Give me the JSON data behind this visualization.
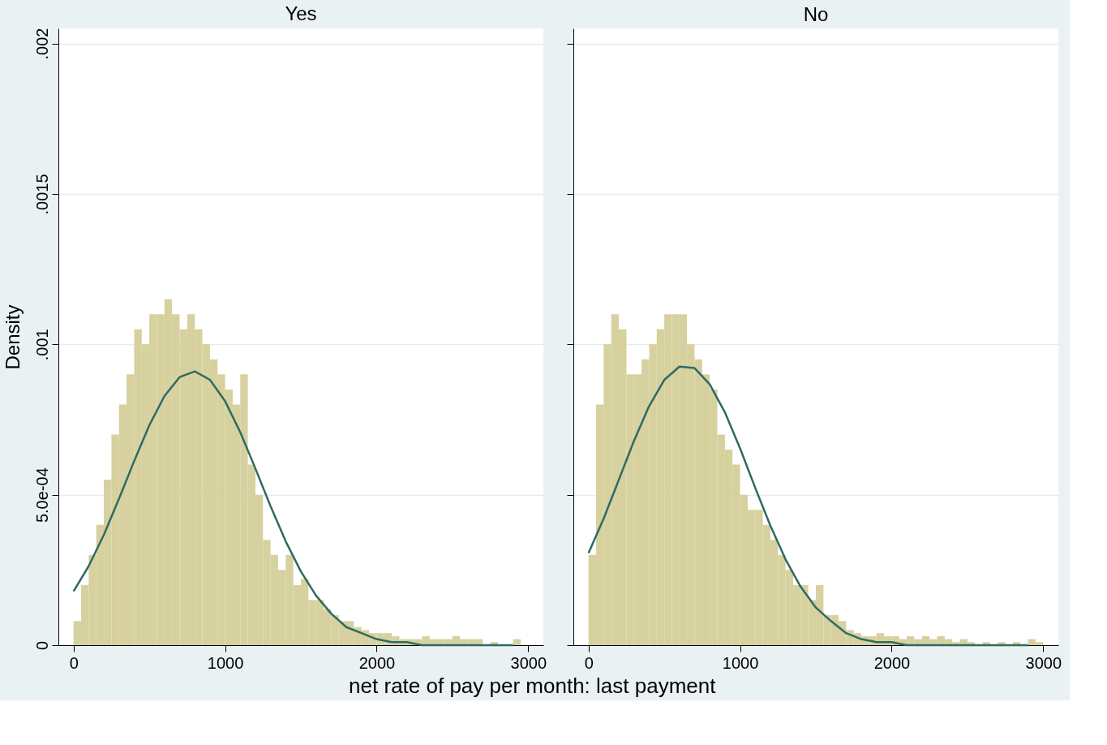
{
  "chart_data": [
    {
      "type": "histogram",
      "title": "Yes",
      "xlabel": "net rate of pay per month: last payment",
      "ylabel": "Density",
      "bins": [
        0,
        50,
        100,
        150,
        200,
        250,
        300,
        350,
        400,
        450,
        500,
        550,
        600,
        650,
        700,
        750,
        800,
        850,
        900,
        950,
        1000,
        1050,
        1100,
        1150,
        1200,
        1250,
        1300,
        1350,
        1400,
        1450,
        1500,
        1550,
        1600,
        1650,
        1700,
        1750,
        1800,
        1850,
        1900,
        1950,
        2000,
        2050,
        2100,
        2150,
        2200,
        2250,
        2300,
        2350,
        2400,
        2450,
        2500,
        2550,
        2600,
        2650,
        2700,
        2750,
        2800,
        2850,
        2900,
        2950,
        3000
      ],
      "values": [
        8e-05,
        0.0002,
        0.0003,
        0.0004,
        0.00055,
        0.0007,
        0.0008,
        0.0009,
        0.00105,
        0.001,
        0.0011,
        0.0011,
        0.00115,
        0.0011,
        0.00105,
        0.0011,
        0.00105,
        0.001,
        0.00095,
        0.0009,
        0.00085,
        0.0008,
        0.0009,
        0.0006,
        0.0005,
        0.00035,
        0.0003,
        0.00025,
        0.0003,
        0.0002,
        0.00022,
        0.00015,
        0.00015,
        0.00012,
        0.0001,
        8e-05,
        8e-05,
        6e-05,
        5e-05,
        4e-05,
        4e-05,
        4e-05,
        3e-05,
        2e-05,
        2e-05,
        2e-05,
        3e-05,
        2e-05,
        2e-05,
        2e-05,
        3e-05,
        2e-05,
        2e-05,
        2e-05,
        0,
        1e-05,
        0,
        0,
        2e-05,
        0
      ],
      "color": "#d6d19e",
      "series": [
        {
          "type": "line",
          "color": "#2e6b62",
          "x": [
            0,
            100,
            200,
            300,
            400,
            500,
            600,
            700,
            800,
            900,
            1000,
            1100,
            1200,
            1300,
            1400,
            1500,
            1600,
            1700,
            1800,
            1900,
            2000,
            2100,
            2200,
            2300,
            2400,
            2500,
            2600,
            2700,
            2800,
            2900
          ],
          "values": [
            0.000179,
            0.000263,
            0.000367,
            0.000487,
            0.000612,
            0.000731,
            0.000828,
            0.000891,
            0.00091,
            0.000882,
            0.000811,
            0.000708,
            0.000587,
            0.000462,
            0.000345,
            0.000245,
            0.000165,
            0.000105,
            6e-05,
            4e-05,
            2e-05,
            1e-05,
            1e-05,
            0,
            0,
            0,
            0,
            0,
            0,
            0
          ]
        }
      ],
      "xlim": [
        -100,
        3100
      ],
      "ylim": [
        0,
        0.00205
      ],
      "xticks": [
        0,
        1000,
        2000,
        3000
      ],
      "yticks": [
        0,
        {
          "value": 0.0005,
          "label": "5.0e-04"
        },
        {
          "value": 0.001,
          "label": ".001"
        },
        {
          "value": 0.0015,
          "label": ".0015"
        },
        {
          "value": 0.002,
          "label": ".002"
        }
      ],
      "grid": "y"
    },
    {
      "type": "histogram",
      "title": "No",
      "bins": [
        0,
        50,
        100,
        150,
        200,
        250,
        300,
        350,
        400,
        450,
        500,
        550,
        600,
        650,
        700,
        750,
        800,
        850,
        900,
        950,
        1000,
        1050,
        1100,
        1150,
        1200,
        1250,
        1300,
        1350,
        1400,
        1450,
        1500,
        1550,
        1600,
        1650,
        1700,
        1750,
        1800,
        1850,
        1900,
        1950,
        2000,
        2050,
        2100,
        2150,
        2200,
        2250,
        2300,
        2350,
        2400,
        2450,
        2500,
        2550,
        2600,
        2650,
        2700,
        2750,
        2800,
        2850,
        2900,
        2950,
        3000
      ],
      "values": [
        0.0003,
        0.0008,
        0.001,
        0.0011,
        0.00105,
        0.0009,
        0.0009,
        0.00095,
        0.001,
        0.00105,
        0.0011,
        0.0011,
        0.0011,
        0.001,
        0.00095,
        0.0009,
        0.00085,
        0.0007,
        0.00065,
        0.0006,
        0.0005,
        0.00045,
        0.00045,
        0.0004,
        0.00035,
        0.0003,
        0.00025,
        0.0002,
        0.0002,
        0.00015,
        0.0002,
        0.0001,
        0.0001,
        8e-05,
        5e-05,
        4e-05,
        3e-05,
        3e-05,
        4e-05,
        3e-05,
        3e-05,
        2e-05,
        3e-05,
        2e-05,
        3e-05,
        2e-05,
        3e-05,
        2e-05,
        1e-05,
        2e-05,
        1e-05,
        0,
        1e-05,
        0,
        1e-05,
        0,
        1e-05,
        0,
        2e-05,
        1e-05
      ],
      "color": "#d6d19e",
      "series": [
        {
          "type": "line",
          "color": "#2e6b62",
          "x": [
            0,
            100,
            200,
            300,
            400,
            500,
            600,
            700,
            800,
            900,
            1000,
            1100,
            1200,
            1300,
            1400,
            1500,
            1600,
            1700,
            1800,
            1900,
            2000,
            2100,
            2200,
            2300,
            2400,
            2500,
            2600,
            2700,
            2800,
            2900
          ],
          "values": [
            0.000306,
            0.000421,
            0.00055,
            0.000679,
            0.000795,
            0.000882,
            0.000926,
            0.000921,
            0.000867,
            0.000774,
            0.000654,
            0.000523,
            0.000397,
            0.000285,
            0.000194,
            0.000125,
            8e-05,
            4e-05,
            2e-05,
            1e-05,
            1e-05,
            0,
            0,
            0,
            0,
            0,
            0,
            0,
            0,
            0
          ]
        }
      ],
      "xlim": [
        -100,
        3100
      ],
      "ylim": [
        0,
        0.00205
      ],
      "xticks": [
        0,
        1000,
        2000,
        3000
      ],
      "yticks": [
        {
          "value": 0,
          "label": null
        },
        {
          "value": 0.0005,
          "label": null
        },
        {
          "value": 0.001,
          "label": null
        },
        {
          "value": 0.0015,
          "label": null
        },
        {
          "value": 0.002,
          "label": null
        }
      ],
      "grid": "y",
      "tick_labels": "x"
    }
  ]
}
